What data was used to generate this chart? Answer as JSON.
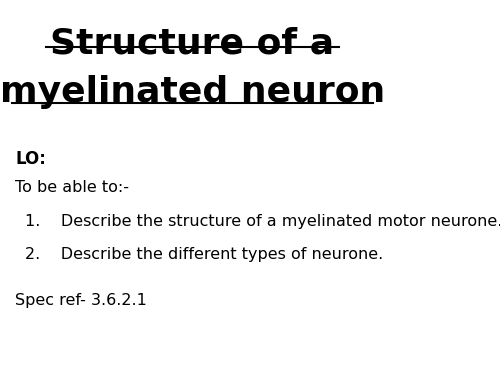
{
  "title_line1": "Structure of a",
  "title_line2": "myelinated neuron",
  "background_color": "#ffffff",
  "text_color": "#000000",
  "lo_label": "LO:",
  "intro_text": "To be able to:-",
  "item1": "Describe the structure of a myelinated motor neurone.",
  "item2": "Describe the different types of neurone.",
  "spec_ref": "Spec ref- 3.6.2.1",
  "title_fontsize": 26,
  "body_fontsize": 11.5,
  "lo_fontsize": 12,
  "spec_fontsize": 11.5
}
